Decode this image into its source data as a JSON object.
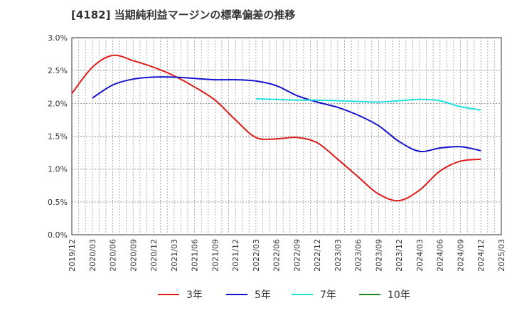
{
  "chart_data": {
    "type": "line",
    "title": "[4182]  当期純利益マージンの標準偏差の推移",
    "xlabel": "",
    "ylabel": "",
    "ylim": [
      0,
      3.0
    ],
    "y_ticks": [
      "0.0%",
      "0.5%",
      "1.0%",
      "1.5%",
      "2.0%",
      "2.5%",
      "3.0%"
    ],
    "x_ticks": [
      "2019/12",
      "2020/03",
      "2020/06",
      "2020/09",
      "2020/12",
      "2021/03",
      "2021/06",
      "2021/09",
      "2021/12",
      "2022/03",
      "2022/06",
      "2022/09",
      "2022/12",
      "2023/03",
      "2023/06",
      "2023/09",
      "2023/12",
      "2024/03",
      "2024/06",
      "2024/09",
      "2024/12",
      "2025/03"
    ],
    "grid": true,
    "legend_placement": "bottom",
    "series": [
      {
        "name": "3年",
        "color": "#dd1c1c",
        "values": [
          2.15,
          2.55,
          2.73,
          2.65,
          2.55,
          2.42,
          2.25,
          2.05,
          1.75,
          1.48,
          1.46,
          1.48,
          1.4,
          1.15,
          0.88,
          0.62,
          0.52,
          0.68,
          0.97,
          1.12,
          1.15,
          null
        ]
      },
      {
        "name": "5年",
        "color": "#1414cc",
        "values": [
          null,
          2.08,
          2.28,
          2.37,
          2.4,
          2.4,
          2.38,
          2.36,
          2.36,
          2.34,
          2.27,
          2.12,
          2.02,
          1.94,
          1.82,
          1.66,
          1.42,
          1.27,
          1.32,
          1.34,
          1.28,
          null
        ]
      },
      {
        "name": "7年",
        "color": "#22e0e0",
        "values": [
          null,
          null,
          null,
          null,
          null,
          null,
          null,
          null,
          null,
          2.07,
          2.06,
          2.05,
          2.05,
          2.04,
          2.03,
          2.02,
          2.04,
          2.06,
          2.04,
          1.95,
          1.9,
          null
        ]
      },
      {
        "name": "10年",
        "color": "#1f8a1f",
        "values": [
          null,
          null,
          null,
          null,
          null,
          null,
          null,
          null,
          null,
          null,
          null,
          null,
          null,
          null,
          null,
          null,
          null,
          null,
          null,
          null,
          null,
          null
        ]
      }
    ]
  }
}
